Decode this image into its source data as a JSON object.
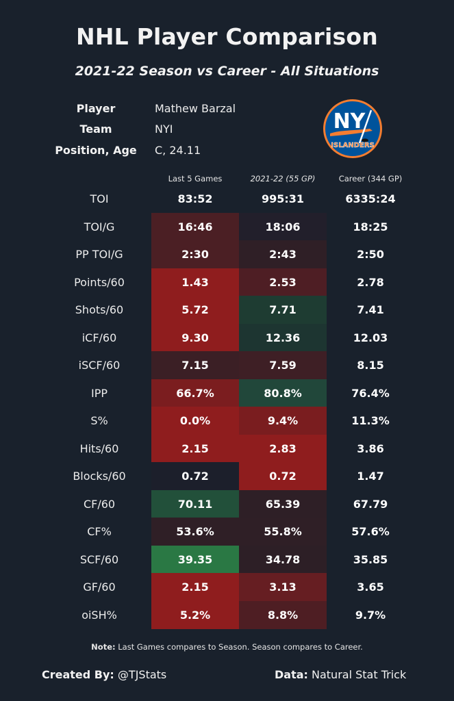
{
  "header": {
    "title": "NHL Player Comparison",
    "subtitle": "2021-22 Season vs Career - All Situations"
  },
  "player_info": [
    {
      "label": "Player",
      "value": "Mathew Barzal"
    },
    {
      "label": "Team",
      "value": "NYI"
    },
    {
      "label": "Position, Age",
      "value": "C, 24.11"
    }
  ],
  "logo": {
    "icon": "new-york-islanders-logo",
    "text_top": "NY",
    "text_bottom": "ISLANDERS",
    "colors": {
      "blue": "#00539b",
      "orange": "#f47d30",
      "white": "#ffffff"
    }
  },
  "columns": [
    "Last 5 Games",
    "2021-22 (55 GP)",
    "Career (344 GP)"
  ],
  "colors": {
    "background": "#19212c",
    "red_strong": "#8f1d1d",
    "red_mid": "#7a1d1f",
    "red_soft": "#651e22",
    "red_faint": "#4b1e24",
    "red_dim": "#3b1f25",
    "neutral": "#2f1f26",
    "neutral_dark": "#231e2a",
    "blue_dark": "#1e1f2b",
    "green_dark": "#1f3a32",
    "green_mid": "#224f3a",
    "green_strong": "#2a7844"
  },
  "rows": [
    {
      "stat": "TOI",
      "last5": "83:52",
      "season": "995:31",
      "career": "6335:24",
      "last5_color": "",
      "season_color": ""
    },
    {
      "stat": "TOI/G",
      "last5": "16:46",
      "season": "18:06",
      "career": "18:25",
      "last5_color": "#4b1f24",
      "season_color": "#221f2b"
    },
    {
      "stat": "PP TOI/G",
      "last5": "2:30",
      "season": "2:43",
      "career": "2:50",
      "last5_color": "#4b1f24",
      "season_color": "#2f1f26"
    },
    {
      "stat": "Points/60",
      "last5": "1.43",
      "season": "2.53",
      "career": "2.78",
      "last5_color": "#8f1d1e",
      "season_color": "#4e1e24"
    },
    {
      "stat": "Shots/60",
      "last5": "5.72",
      "season": "7.71",
      "career": "7.41",
      "last5_color": "#8f1d1e",
      "season_color": "#1e3c32"
    },
    {
      "stat": "iCF/60",
      "last5": "9.30",
      "season": "12.36",
      "career": "12.03",
      "last5_color": "#8f1d1e",
      "season_color": "#1d3531"
    },
    {
      "stat": "iSCF/60",
      "last5": "7.15",
      "season": "7.59",
      "career": "8.15",
      "last5_color": "#3b1f25",
      "season_color": "#3e1f25"
    },
    {
      "stat": "IPP",
      "last5": "66.7%",
      "season": "80.8%",
      "career": "76.4%",
      "last5_color": "#7b1d1f",
      "season_color": "#21473a"
    },
    {
      "stat": "S%",
      "last5": "0.0%",
      "season": "9.4%",
      "career": "11.3%",
      "last5_color": "#8f1d1e",
      "season_color": "#7a1d1f"
    },
    {
      "stat": "Hits/60",
      "last5": "2.15",
      "season": "2.83",
      "career": "3.86",
      "last5_color": "#8f1d1e",
      "season_color": "#8f1d1e"
    },
    {
      "stat": "Blocks/60",
      "last5": "0.72",
      "season": "0.72",
      "career": "1.47",
      "last5_color": "#1c1f2b",
      "season_color": "#8f1d1e"
    },
    {
      "stat": "CF/60",
      "last5": "70.11",
      "season": "65.39",
      "career": "67.79",
      "last5_color": "#22503a",
      "season_color": "#2e1f26"
    },
    {
      "stat": "CF%",
      "last5": "53.6%",
      "season": "55.8%",
      "career": "57.6%",
      "last5_color": "#2f1f26",
      "season_color": "#2f1f26"
    },
    {
      "stat": "SCF/60",
      "last5": "39.35",
      "season": "34.78",
      "career": "35.85",
      "last5_color": "#2a7844",
      "season_color": "#2d1f26"
    },
    {
      "stat": "GF/60",
      "last5": "2.15",
      "season": "3.13",
      "career": "3.65",
      "last5_color": "#8f1d1e",
      "season_color": "#661e22"
    },
    {
      "stat": "oiSH%",
      "last5": "5.2%",
      "season": "8.8%",
      "career": "9.7%",
      "last5_color": "#8f1d1e",
      "season_color": "#4e1e23"
    }
  ],
  "note": {
    "label": "Note:",
    "text": " Last Games compares to Season. Season compares to Career."
  },
  "footer": {
    "created_label": "Created By:",
    "created_value": " @TJStats",
    "data_label": "Data:",
    "data_value": " Natural Stat Trick"
  }
}
